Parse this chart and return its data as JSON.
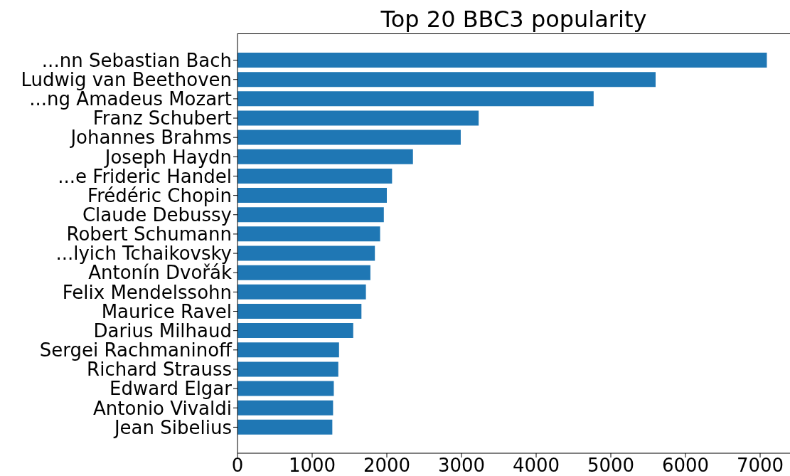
{
  "chart_data": {
    "type": "bar",
    "orientation": "horizontal",
    "title": "Top 20 BBC3 popularity",
    "categories": [
      "...nn Sebastian Bach",
      "Ludwig van Beethoven",
      "...ng Amadeus Mozart",
      "Franz Schubert",
      "Johannes Brahms",
      "Joseph Haydn",
      "...e Frideric Handel",
      "Frédéric Chopin",
      "Claude Debussy",
      "Robert Schumann",
      "...lyich Tchaikovsky",
      "Antonín Dvořák",
      "Felix Mendelssohn",
      "Maurice Ravel",
      "Darius Milhaud",
      "Sergei Rachmaninoff",
      "Richard Strauss",
      "Edward Elgar",
      "Antonio Vivaldi",
      "Jean Sibelius"
    ],
    "values": [
      7090,
      5600,
      4770,
      3230,
      2990,
      2350,
      2070,
      2000,
      1960,
      1910,
      1840,
      1780,
      1720,
      1660,
      1550,
      1360,
      1350,
      1290,
      1280,
      1270
    ],
    "color": "#1f77b4",
    "xlim": [
      0,
      7400
    ],
    "xticks": [
      0,
      1000,
      2000,
      3000,
      4000,
      5000,
      6000,
      7000
    ],
    "grid": false
  }
}
